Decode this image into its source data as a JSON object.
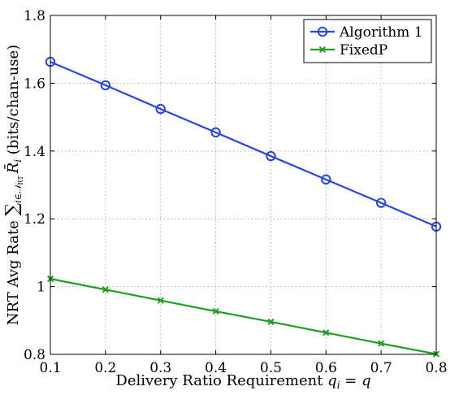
{
  "chart_data": {
    "type": "line",
    "xlabel_prefix": "Delivery Ratio Requirement ",
    "xlabel_math": "q_i = q",
    "ylabel_prefix": "NRT Avg Rate ",
    "ylabel_math": "sum over i in N_RT of R-bar_i",
    "ylabel_suffix": " (bits/chan-use)",
    "xlim": [
      0.1,
      0.8
    ],
    "ylim": [
      0.8,
      1.8
    ],
    "xticks": [
      "0.1",
      "0.2",
      "0.3",
      "0.4",
      "0.5",
      "0.6",
      "0.7",
      "0.8"
    ],
    "yticks": [
      "0.8",
      "1",
      "1.2",
      "1.4",
      "1.6",
      "1.8"
    ],
    "grid": true,
    "legend_position": "top-right",
    "x": [
      0.1,
      0.2,
      0.3,
      0.4,
      0.5,
      0.6,
      0.7,
      0.8
    ],
    "series": [
      {
        "name": "Algorithm 1",
        "color": "#2447e0",
        "marker": "circle",
        "values": [
          1.663,
          1.594,
          1.524,
          1.455,
          1.385,
          1.316,
          1.247,
          1.177
        ]
      },
      {
        "name": "FixedP",
        "color": "#1e9e1e",
        "marker": "x",
        "values": [
          1.023,
          0.991,
          0.959,
          0.927,
          0.896,
          0.864,
          0.832,
          0.801
        ]
      }
    ]
  }
}
